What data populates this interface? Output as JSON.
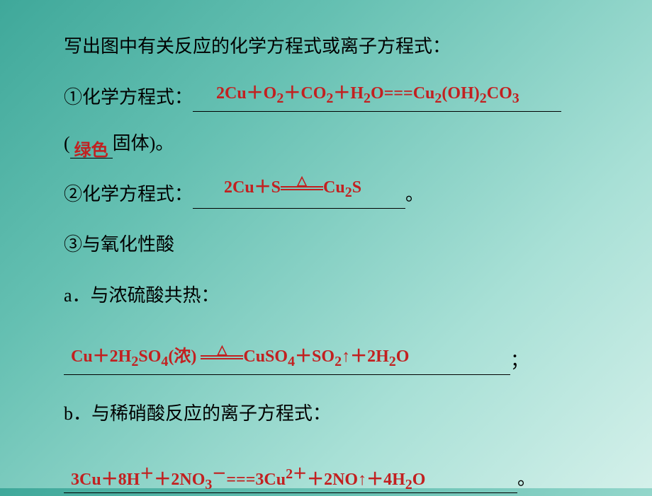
{
  "colors": {
    "bg_start": "#3fa89a",
    "bg_end": "#d4f0ea",
    "text": "#000000",
    "answer": "#c22020"
  },
  "fonts": {
    "main_size": 26,
    "answer_size": 24,
    "family": "SimSun"
  },
  "heading": "写出图中有关反应的化学方程式或离子方程式：",
  "item1": {
    "label": "①化学方程式：",
    "equation_html": "2Cu＋O<sub>2</sub>＋CO<sub>2</sub>＋H<sub>2</sub>O===Cu<sub>2</sub>(OH)<sub>2</sub>CO<sub>3</sub>",
    "note_prefix": "(",
    "note_answer": "绿色",
    "note_suffix": "固体)。"
  },
  "item2": {
    "label": "②化学方程式：",
    "equation_left": "2Cu＋S",
    "equation_right": "Cu<sub>2</sub>S",
    "period": "。"
  },
  "item3": {
    "label": "③与氧化性酸",
    "sub_a": {
      "label": "a．与浓硫酸共热：",
      "eq_left": "Cu＋2H<sub>2</sub>SO<sub>4</sub>(浓)  ",
      "eq_right": "CuSO<sub>4</sub>＋SO<sub>2</sub>↑＋2H<sub>2</sub>O",
      "tail": "；"
    },
    "sub_b": {
      "label": "b．与稀硝酸反应的离子方程式：",
      "equation_html": "3Cu＋8H<sup>＋</sup>＋2NO<sub>3</sub><sup>－</sup>===3Cu<sup>2＋</sup>＋2NO↑＋4H<sub>2</sub>O",
      "tail": "。"
    }
  }
}
